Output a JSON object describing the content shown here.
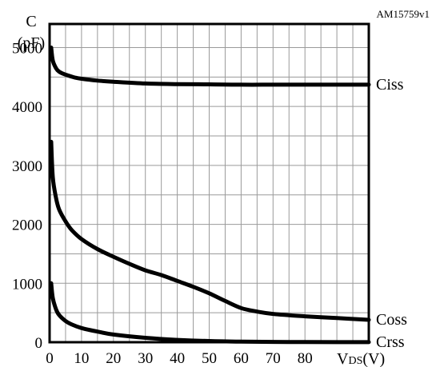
{
  "figure_id": "AM15759v1",
  "chart_data": {
    "type": "line",
    "ylabel_line1": "C",
    "ylabel_line2": "(pF)",
    "xlabel_main": "V",
    "xlabel_sub": "DS",
    "xlabel_unit": "(V)",
    "xlim": [
      0,
      100
    ],
    "ylim": [
      0,
      5400
    ],
    "xticks": [
      0,
      10,
      20,
      30,
      40,
      50,
      60,
      70,
      80
    ],
    "yticks": [
      0,
      1000,
      2000,
      3000,
      4000,
      5000
    ],
    "grid": true,
    "grid_x_step": 5,
    "grid_y_step": 500,
    "line_color": "#000000",
    "series": [
      {
        "name": "Ciss",
        "x": [
          0.5,
          1,
          2,
          3,
          5,
          8,
          10,
          15,
          20,
          30,
          40,
          50,
          60,
          70,
          80,
          90,
          100
        ],
        "y": [
          5000,
          4780,
          4650,
          4590,
          4540,
          4490,
          4470,
          4440,
          4420,
          4390,
          4380,
          4375,
          4370,
          4370,
          4370,
          4370,
          4370
        ]
      },
      {
        "name": "Coss",
        "x": [
          0.5,
          1,
          2,
          3,
          5,
          7,
          10,
          15,
          20,
          25,
          30,
          35,
          40,
          45,
          50,
          55,
          60,
          65,
          70,
          80,
          90,
          100
        ],
        "y": [
          3400,
          2800,
          2450,
          2250,
          2050,
          1900,
          1750,
          1580,
          1450,
          1330,
          1220,
          1140,
          1040,
          940,
          830,
          700,
          580,
          520,
          480,
          440,
          410,
          380
        ]
      },
      {
        "name": "Crss",
        "x": [
          0.5,
          1,
          2,
          3,
          5,
          7,
          10,
          15,
          20,
          30,
          40,
          50,
          60,
          70,
          80,
          90,
          100
        ],
        "y": [
          1000,
          750,
          560,
          460,
          360,
          300,
          240,
          180,
          130,
          75,
          40,
          20,
          10,
          5,
          3,
          2,
          1
        ]
      }
    ]
  }
}
